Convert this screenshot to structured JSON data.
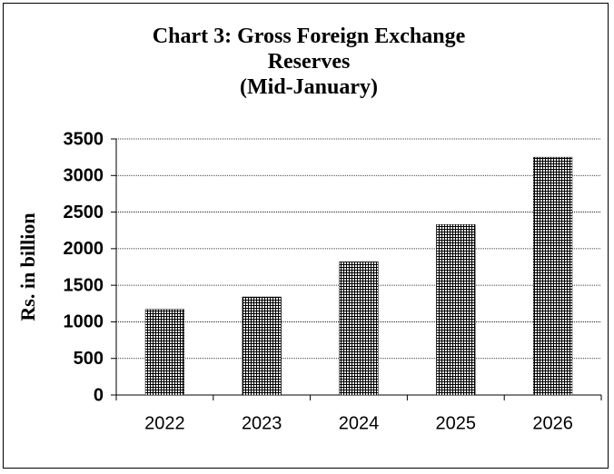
{
  "chart_data": {
    "type": "bar",
    "title": "Chart  3: Gross Foreign Exchange Reserves",
    "subtitle": "(Mid-January)",
    "y_label": "Rs. in billion",
    "categories": [
      "2022",
      "2023",
      "2024",
      "2025",
      "2026"
    ],
    "values": [
      1170,
      1340,
      1820,
      2330,
      3250
    ],
    "color": "#000000",
    "ylim": [
      0,
      3500
    ],
    "yticks": [
      0,
      500,
      1000,
      1500,
      2000,
      2500,
      3000,
      3500
    ],
    "grid": true
  }
}
